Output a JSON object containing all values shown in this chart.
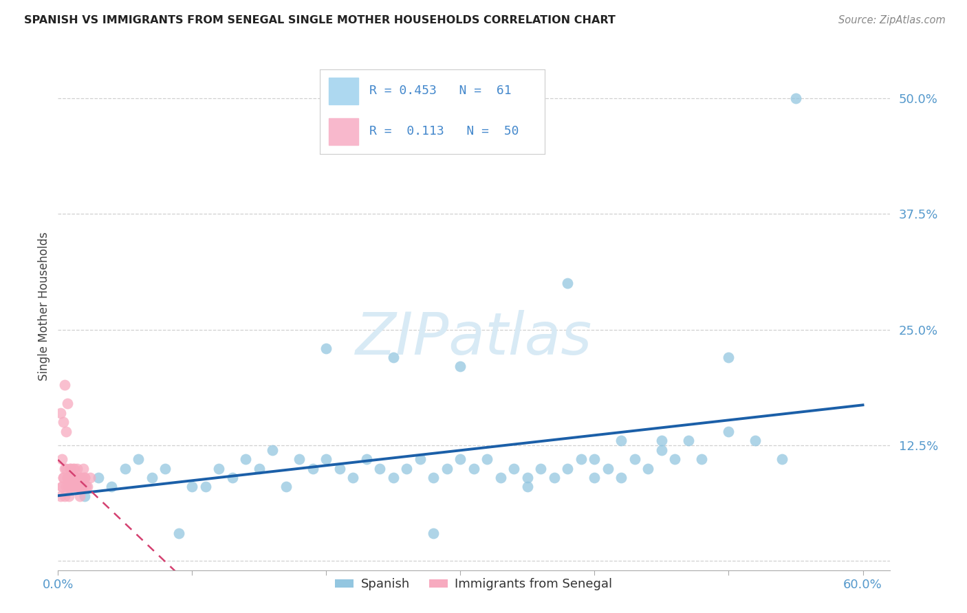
{
  "title": "SPANISH VS IMMIGRANTS FROM SENEGAL SINGLE MOTHER HOUSEHOLDS CORRELATION CHART",
  "source": "Source: ZipAtlas.com",
  "ylabel": "Single Mother Households",
  "xlim": [
    0.0,
    0.62
  ],
  "ylim": [
    -0.01,
    0.56
  ],
  "xticks": [
    0.0,
    0.1,
    0.2,
    0.3,
    0.4,
    0.5,
    0.6
  ],
  "yticks": [
    0.0,
    0.125,
    0.25,
    0.375,
    0.5
  ],
  "ytick_labels": [
    "",
    "12.5%",
    "25.0%",
    "37.5%",
    "50.0%"
  ],
  "xtick_labels": [
    "0.0%",
    "",
    "",
    "",
    "",
    "",
    "60.0%"
  ],
  "spanish_R": 0.453,
  "spanish_N": 61,
  "senegal_R": 0.113,
  "senegal_N": 50,
  "spanish_color": "#93C6E0",
  "senegal_color": "#F7AABF",
  "trendline_spanish_color": "#1B5FA8",
  "trendline_senegal_color": "#D44070",
  "background_color": "#FFFFFF",
  "grid_color": "#D0D0D0",
  "watermark_color": "#D8EAF5",
  "sp_x": [
    0.02,
    0.03,
    0.04,
    0.05,
    0.06,
    0.07,
    0.08,
    0.09,
    0.1,
    0.11,
    0.12,
    0.13,
    0.14,
    0.15,
    0.16,
    0.17,
    0.18,
    0.19,
    0.2,
    0.21,
    0.22,
    0.23,
    0.24,
    0.25,
    0.26,
    0.27,
    0.28,
    0.29,
    0.3,
    0.31,
    0.32,
    0.33,
    0.34,
    0.35,
    0.36,
    0.37,
    0.38,
    0.39,
    0.4,
    0.41,
    0.42,
    0.43,
    0.44,
    0.45,
    0.46,
    0.47,
    0.48,
    0.5,
    0.52,
    0.54,
    0.2,
    0.25,
    0.3,
    0.35,
    0.4,
    0.45,
    0.5,
    0.55,
    0.38,
    0.42,
    0.28
  ],
  "sp_y": [
    0.07,
    0.09,
    0.08,
    0.1,
    0.11,
    0.09,
    0.1,
    0.03,
    0.08,
    0.08,
    0.1,
    0.09,
    0.11,
    0.1,
    0.12,
    0.08,
    0.11,
    0.1,
    0.11,
    0.1,
    0.09,
    0.11,
    0.1,
    0.09,
    0.1,
    0.11,
    0.09,
    0.1,
    0.11,
    0.1,
    0.11,
    0.09,
    0.1,
    0.09,
    0.1,
    0.09,
    0.1,
    0.11,
    0.11,
    0.1,
    0.09,
    0.11,
    0.1,
    0.12,
    0.11,
    0.13,
    0.11,
    0.14,
    0.13,
    0.11,
    0.23,
    0.22,
    0.21,
    0.08,
    0.09,
    0.13,
    0.22,
    0.5,
    0.3,
    0.13,
    0.03
  ],
  "sen_x": [
    0.002,
    0.003,
    0.004,
    0.005,
    0.006,
    0.007,
    0.008,
    0.009,
    0.01,
    0.011,
    0.012,
    0.013,
    0.014,
    0.015,
    0.016,
    0.017,
    0.018,
    0.019,
    0.02,
    0.021,
    0.003,
    0.005,
    0.007,
    0.009,
    0.011,
    0.013,
    0.015,
    0.004,
    0.006,
    0.008,
    0.01,
    0.012,
    0.014,
    0.016,
    0.018,
    0.02,
    0.022,
    0.024,
    0.002,
    0.004,
    0.006,
    0.008,
    0.01,
    0.012,
    0.005,
    0.007,
    0.009,
    0.003,
    0.011,
    0.015
  ],
  "sen_y": [
    0.07,
    0.08,
    0.09,
    0.1,
    0.08,
    0.09,
    0.08,
    0.1,
    0.09,
    0.08,
    0.1,
    0.09,
    0.1,
    0.08,
    0.09,
    0.08,
    0.09,
    0.1,
    0.09,
    0.08,
    0.11,
    0.07,
    0.09,
    0.08,
    0.1,
    0.09,
    0.08,
    0.09,
    0.1,
    0.08,
    0.09,
    0.08,
    0.09,
    0.07,
    0.08,
    0.09,
    0.08,
    0.09,
    0.16,
    0.15,
    0.14,
    0.07,
    0.08,
    0.09,
    0.19,
    0.17,
    0.1,
    0.08,
    0.09,
    0.08
  ]
}
